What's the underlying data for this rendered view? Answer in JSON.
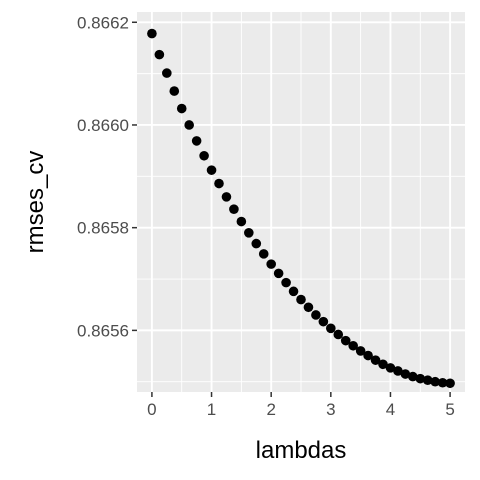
{
  "chart_data": {
    "type": "scatter",
    "xlabel": "lambdas",
    "ylabel": "rmses_cv",
    "xlim": [
      -0.25,
      5.25
    ],
    "ylim": [
      0.86548,
      0.86622
    ],
    "x_ticks": [
      0,
      1,
      2,
      3,
      4,
      5
    ],
    "x_tick_labels": [
      "0",
      "1",
      "2",
      "3",
      "4",
      "5"
    ],
    "y_ticks": [
      0.8656,
      0.8658,
      0.866,
      0.8662
    ],
    "y_tick_labels": [
      "0.8656",
      "0.8658",
      "0.8660",
      "0.8662"
    ],
    "grid": true,
    "panel_background": "#ebebeb",
    "grid_color": "#ffffff",
    "point_color": "#000000",
    "x": [
      0,
      0.125,
      0.25,
      0.375,
      0.5,
      0.625,
      0.75,
      0.875,
      1,
      1.125,
      1.25,
      1.375,
      1.5,
      1.625,
      1.75,
      1.875,
      2,
      2.125,
      2.25,
      2.375,
      2.5,
      2.625,
      2.75,
      2.875,
      3,
      3.125,
      3.25,
      3.375,
      3.5,
      3.625,
      3.75,
      3.875,
      4,
      4.125,
      4.25,
      4.375,
      4.5,
      4.625,
      4.75,
      4.875,
      5
    ],
    "y": [
      0.866178,
      0.866137,
      0.866101,
      0.866066,
      0.866032,
      0.866,
      0.865969,
      0.86594,
      0.865912,
      0.865886,
      0.86586,
      0.865836,
      0.865812,
      0.86579,
      0.865769,
      0.865749,
      0.865729,
      0.865711,
      0.865693,
      0.865676,
      0.86566,
      0.865645,
      0.86563,
      0.865617,
      0.865604,
      0.865592,
      0.86558,
      0.86557,
      0.86556,
      0.865551,
      0.865542,
      0.865534,
      0.865527,
      0.865521,
      0.865515,
      0.86551,
      0.865506,
      0.865503,
      0.8655,
      0.865498,
      0.865497
    ]
  }
}
